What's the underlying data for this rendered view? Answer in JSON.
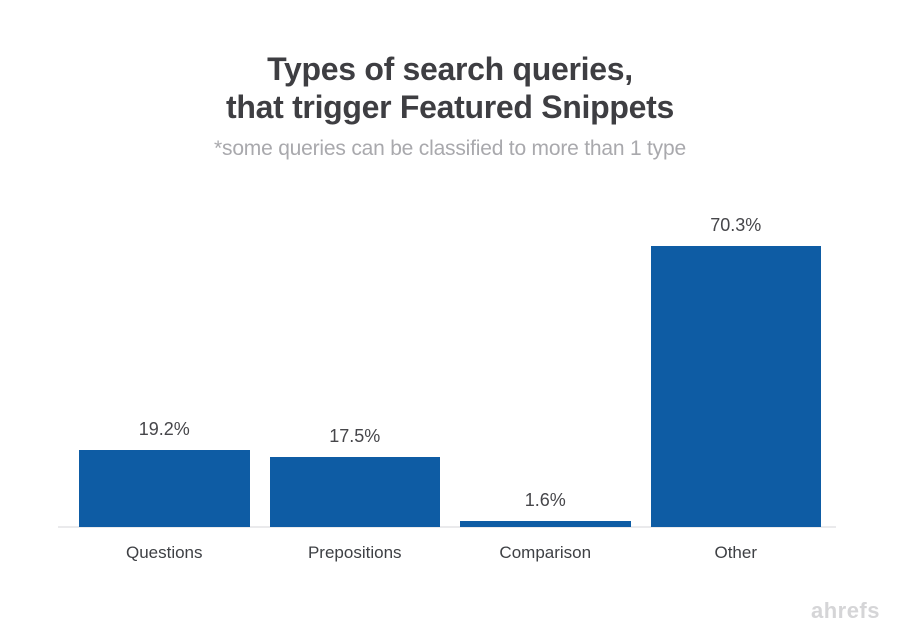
{
  "header": {
    "title_line1": "Types of search queries,",
    "title_line2": "that trigger Featured Snippets",
    "subtitle": "*some queries can be classified to more than 1 type"
  },
  "chart_data": {
    "type": "bar",
    "title": "Types of search queries, that trigger Featured Snippets",
    "subtitle": "*some queries can be classified to more than 1 type",
    "categories": [
      "Questions",
      "Prepositions",
      "Comparison",
      "Other"
    ],
    "values": [
      19.2,
      17.5,
      1.6,
      70.3
    ],
    "value_labels": [
      "19.2%",
      "17.5%",
      "1.6%",
      "70.3%"
    ],
    "unit": "%",
    "xlabel": "",
    "ylabel": "",
    "ylim": [
      0,
      100
    ],
    "grid": false,
    "legend": false,
    "bar_color": "#0e5ca4",
    "axis_line_color": "#eaeaec"
  },
  "watermark": {
    "text": "ahrefs",
    "color": "#d5d5d7"
  }
}
